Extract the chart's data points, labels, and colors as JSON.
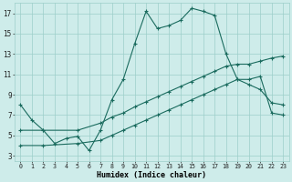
{
  "xlabel": "Humidex (Indice chaleur)",
  "ylabel": "",
  "bg_color": "#ceecea",
  "grid_color": "#9dceca",
  "line_color": "#1a6b5e",
  "xlim": [
    -0.5,
    23.5
  ],
  "ylim": [
    2.5,
    18
  ],
  "xticks": [
    0,
    1,
    2,
    3,
    4,
    5,
    6,
    7,
    8,
    9,
    10,
    11,
    12,
    13,
    14,
    15,
    16,
    17,
    18,
    19,
    20,
    21,
    22,
    23
  ],
  "yticks": [
    3,
    5,
    7,
    9,
    11,
    13,
    15,
    17
  ],
  "line1_x": [
    0,
    1,
    2,
    3,
    4,
    5,
    6,
    7,
    8,
    9,
    10,
    11,
    12,
    13,
    14,
    15,
    16,
    17,
    18,
    19,
    20,
    21,
    22,
    23
  ],
  "line1_y": [
    8.0,
    6.5,
    5.5,
    4.2,
    4.7,
    4.9,
    3.5,
    5.5,
    8.5,
    10.5,
    14.0,
    17.2,
    15.5,
    15.8,
    16.3,
    17.5,
    17.2,
    16.8,
    13.0,
    10.5,
    10.0,
    9.5,
    8.2,
    8.0
  ],
  "line2_x": [
    0,
    2,
    5,
    7,
    8,
    9,
    10,
    11,
    12,
    13,
    14,
    15,
    16,
    17,
    18,
    19,
    20,
    21,
    22,
    23
  ],
  "line2_y": [
    5.5,
    5.5,
    5.5,
    6.2,
    6.8,
    7.2,
    7.8,
    8.3,
    8.8,
    9.3,
    9.8,
    10.3,
    10.8,
    11.3,
    11.8,
    12.0,
    12.0,
    12.3,
    12.6,
    12.8
  ],
  "line3_x": [
    0,
    2,
    5,
    7,
    8,
    9,
    10,
    11,
    12,
    13,
    14,
    15,
    16,
    17,
    18,
    19,
    20,
    21,
    22,
    23
  ],
  "line3_y": [
    4.0,
    4.0,
    4.2,
    4.5,
    5.0,
    5.5,
    6.0,
    6.5,
    7.0,
    7.5,
    8.0,
    8.5,
    9.0,
    9.5,
    10.0,
    10.5,
    10.5,
    10.8,
    7.2,
    7.0
  ]
}
